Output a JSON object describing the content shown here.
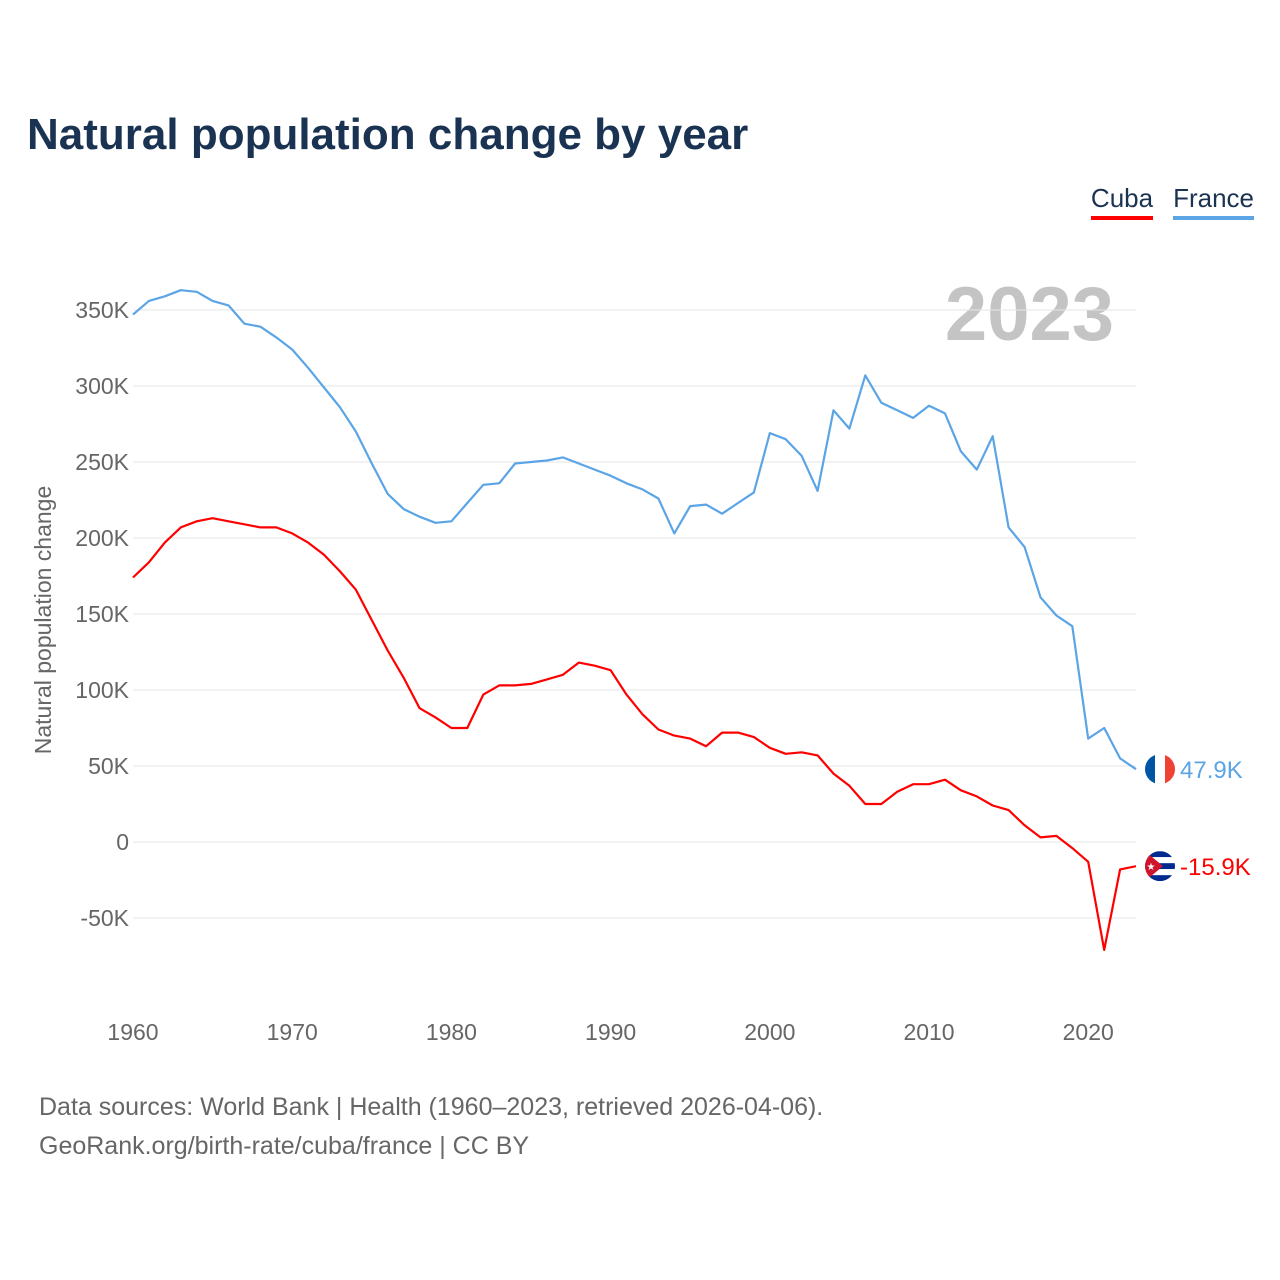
{
  "chart_data": {
    "type": "line",
    "title": "Natural population change by year",
    "xlabel": "",
    "ylabel": "Natural population change",
    "xlim": [
      1960,
      2023
    ],
    "ylim": [
      -100000,
      380000
    ],
    "x_ticks": [
      "1960",
      "1970",
      "1980",
      "1990",
      "2000",
      "2010",
      "2020"
    ],
    "y_ticks": [
      {
        "v": 350000,
        "label": "350K"
      },
      {
        "v": 300000,
        "label": "300K"
      },
      {
        "v": 250000,
        "label": "250K"
      },
      {
        "v": 200000,
        "label": "200K"
      },
      {
        "v": 150000,
        "label": "150K"
      },
      {
        "v": 100000,
        "label": "100K"
      },
      {
        "v": 50000,
        "label": "50K"
      },
      {
        "v": 0,
        "label": "0"
      },
      {
        "v": -50000,
        "label": "-50K"
      }
    ],
    "year_label": "2023",
    "legend_position": "top-right",
    "x": [
      1960,
      1961,
      1962,
      1963,
      1964,
      1965,
      1966,
      1967,
      1968,
      1969,
      1970,
      1971,
      1972,
      1973,
      1974,
      1975,
      1976,
      1977,
      1978,
      1979,
      1980,
      1981,
      1982,
      1983,
      1984,
      1985,
      1986,
      1987,
      1988,
      1989,
      1990,
      1991,
      1992,
      1993,
      1994,
      1995,
      1996,
      1997,
      1998,
      1999,
      2000,
      2001,
      2002,
      2003,
      2004,
      2005,
      2006,
      2007,
      2008,
      2009,
      2010,
      2011,
      2012,
      2013,
      2014,
      2015,
      2016,
      2017,
      2018,
      2019,
      2020,
      2021,
      2022,
      2023
    ],
    "series": [
      {
        "name": "Cuba",
        "color": "#ff0000",
        "end_label": "-15.9K",
        "values": [
          174,
          184,
          197,
          207,
          211,
          213,
          211,
          209,
          207,
          207,
          203,
          197,
          189,
          178,
          166,
          146,
          126,
          108,
          88,
          82,
          75,
          75,
          97,
          103,
          103,
          104,
          107,
          110,
          118,
          116,
          113,
          97,
          84,
          74,
          70,
          68,
          63,
          72,
          72,
          69,
          62,
          58,
          59,
          57,
          45,
          37,
          25,
          25,
          33,
          38,
          38,
          41,
          34,
          30,
          24,
          21,
          11,
          3,
          4,
          -4,
          -13,
          -71,
          -18,
          -15.9
        ]
      },
      {
        "name": "France",
        "color": "#5ba4e6",
        "end_label": "47.9K",
        "values": [
          347,
          356,
          359,
          363,
          362,
          356,
          353,
          341,
          339,
          332,
          324,
          312,
          299,
          286,
          270,
          249,
          229,
          219,
          214,
          210,
          211,
          223,
          235,
          236,
          249,
          250,
          251,
          253,
          249,
          245,
          241,
          236,
          232,
          226,
          203,
          221,
          222,
          216,
          223,
          230,
          269,
          265,
          254,
          231,
          284,
          272,
          307,
          289,
          284,
          279,
          287,
          282,
          257,
          245,
          267,
          207,
          194,
          161,
          149,
          142,
          68,
          75,
          55,
          47.9
        ]
      }
    ],
    "value_unit": "thousands"
  },
  "source": {
    "line1": "Data sources: World Bank | Health (1960–2023, retrieved 2026-04-06).",
    "line2": "GeoRank.org/birth-rate/cuba/france | CC BY"
  }
}
